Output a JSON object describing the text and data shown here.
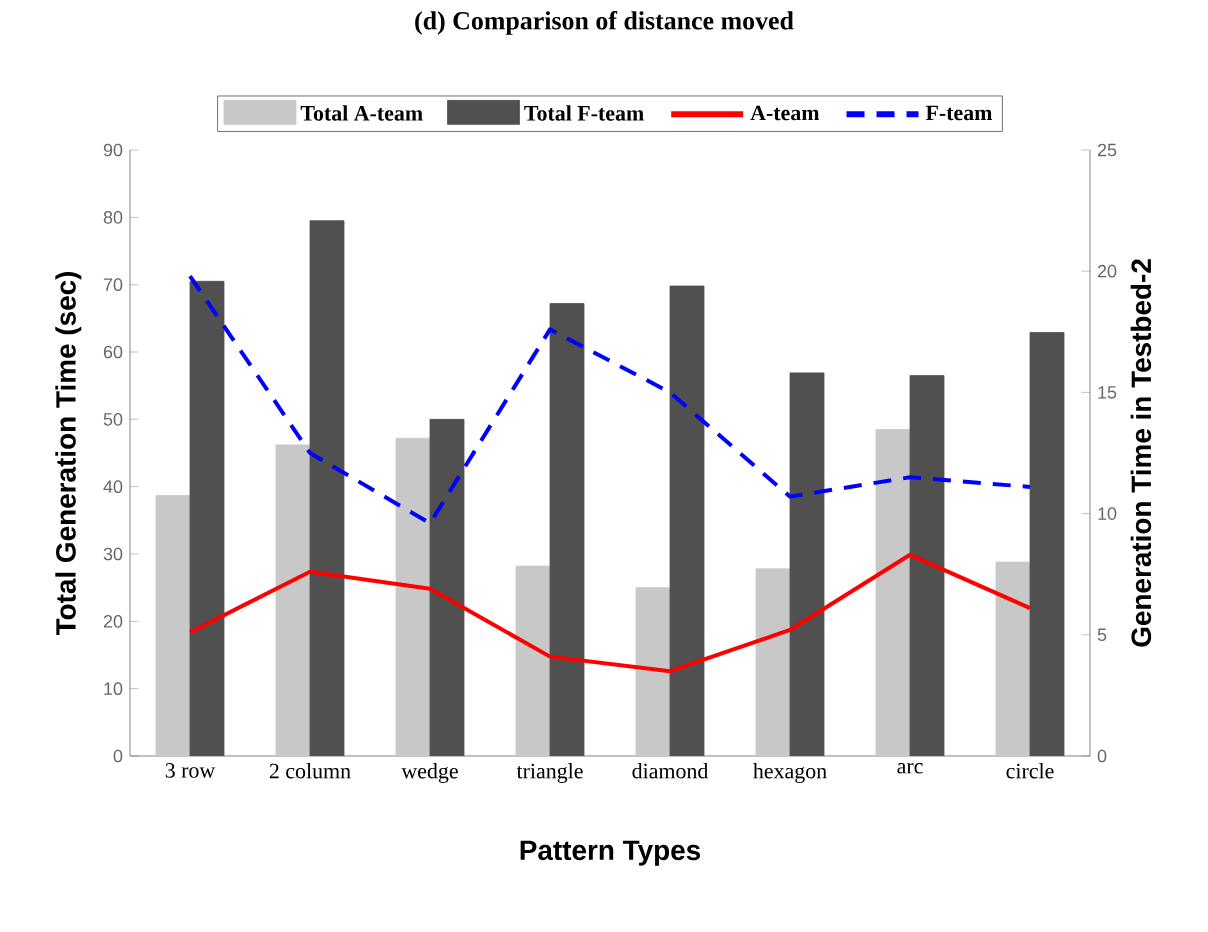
{
  "chart_data": {
    "type": "bar",
    "title": "(d) Comparison of distance moved",
    "xlabel": "Pattern Types",
    "ylabel": "Total Generation Time (sec)",
    "y2label": "Generation Time in Testbed-2",
    "categories": [
      "3 row",
      "2 column",
      "wedge",
      "triangle",
      "diamond",
      "hexagon",
      "arc",
      "circle"
    ],
    "series": [
      {
        "name": "Total A-team",
        "color": "#c8c8c8",
        "values": [
          38.7,
          46.2,
          47.2,
          28.2,
          25,
          27.8,
          48.5,
          28.8
        ]
      },
      {
        "name": "Total F-team",
        "color": "#505050",
        "values": [
          70.5,
          79.5,
          50,
          67.2,
          69.8,
          56.9,
          56.5,
          62.9
        ]
      },
      {
        "name": "A-team",
        "type": "line",
        "axis": "y2",
        "color": "#ff0000",
        "line_style": "solid",
        "values": [
          5.1,
          7.6,
          6.9,
          4.1,
          3.5,
          5.2,
          8.3,
          6.1
        ]
      },
      {
        "name": "F-team",
        "type": "line",
        "axis": "y2",
        "color": "#0000ff",
        "line_style": "dashed",
        "values": [
          19.8,
          12.5,
          9.6,
          17.6,
          15,
          10.7,
          11.5,
          11.1
        ]
      }
    ],
    "ylim": [
      0,
      90
    ],
    "yticks": [
      0,
      10,
      20,
      30,
      40,
      50,
      60,
      70,
      80,
      90
    ],
    "y2lim": [
      0,
      25
    ],
    "y2ticks": [
      0,
      5,
      10,
      15,
      20,
      25
    ],
    "legend": "top",
    "grid": false
  }
}
